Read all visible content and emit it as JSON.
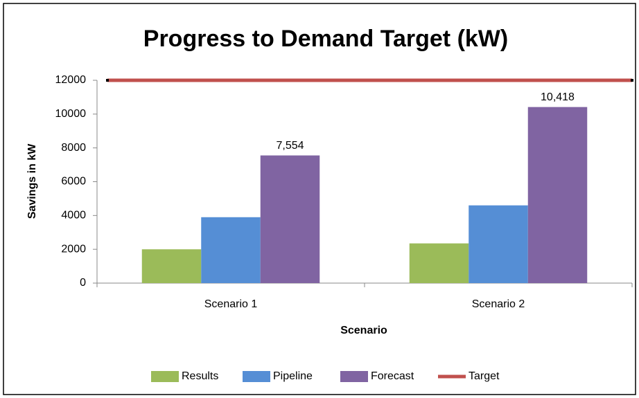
{
  "chart_data": {
    "type": "bar",
    "title": "Progress to Demand Target (kW)",
    "x_label": "Scenario",
    "y_label": "Savings in kW",
    "categories": [
      "Scenario 1",
      "Scenario 2"
    ],
    "series": [
      {
        "name": "Results",
        "color": "#9bbb59",
        "values": [
          2000,
          2350
        ]
      },
      {
        "name": "Pipeline",
        "color": "#558ed5",
        "values": [
          3900,
          4600
        ]
      },
      {
        "name": "Forecast",
        "color": "#8064a2",
        "values": [
          7554,
          10418
        ],
        "value_labels": [
          "7,554",
          "10,418"
        ]
      },
      {
        "name": "Target",
        "color": "#c0504d",
        "type": "line",
        "values": [
          12000,
          12000
        ]
      }
    ],
    "ylim": [
      0,
      12000
    ],
    "yticks": [
      0,
      2000,
      4000,
      6000,
      8000,
      10000,
      12000
    ],
    "grid": false,
    "legend": "bottom"
  }
}
